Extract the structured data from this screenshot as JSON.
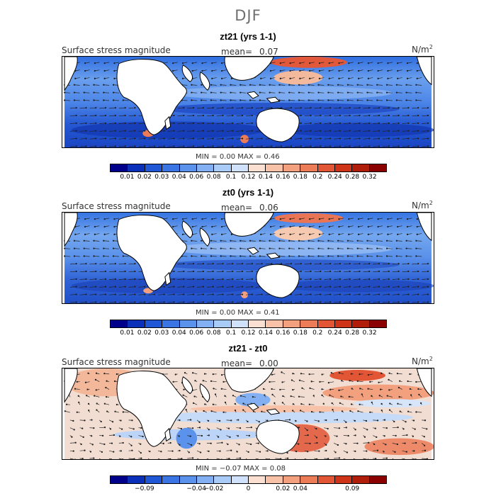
{
  "title": "DJF",
  "colors": {
    "land": "#ffffff",
    "coast": "#000000",
    "arrow": "#222222"
  },
  "panels": [
    {
      "title": "zt21 (yrs 1-1)",
      "field": "Surface stress magnitude",
      "mean_label": "mean=",
      "mean": "0.07",
      "units": "N/m",
      "units_exp": "2",
      "min_label": "MIN =",
      "min": "0.00",
      "max_label": "MAX =",
      "max": "0.46",
      "colorbar": {
        "colors": [
          "#00008b",
          "#0a2fb8",
          "#1f57d6",
          "#3b75e4",
          "#5b92ec",
          "#82b0f2",
          "#a9cbf7",
          "#d0e2fb",
          "#fbe0d2",
          "#f8c2a8",
          "#f3a07f",
          "#ec7b57",
          "#e25535",
          "#cf3418",
          "#b01e0b",
          "#8b0000"
        ],
        "ticks": [
          "0.01",
          "0.02",
          "0.03",
          "0.04",
          "0.06",
          "0.08",
          "0.1",
          "0.12",
          "0.14",
          "0.16",
          "0.18",
          "0.2",
          "0.24",
          "0.28",
          "0.32"
        ]
      }
    },
    {
      "title": "zt0 (yrs 1-1)",
      "field": "Surface stress magnitude",
      "mean_label": "mean=",
      "mean": "0.06",
      "units": "N/m",
      "units_exp": "2",
      "min_label": "MIN =",
      "min": "0.00",
      "max_label": "MAX =",
      "max": "0.41",
      "colorbar": {
        "colors": [
          "#00008b",
          "#0a2fb8",
          "#1f57d6",
          "#3b75e4",
          "#5b92ec",
          "#82b0f2",
          "#a9cbf7",
          "#d0e2fb",
          "#fbe0d2",
          "#f8c2a8",
          "#f3a07f",
          "#ec7b57",
          "#e25535",
          "#cf3418",
          "#b01e0b",
          "#8b0000"
        ],
        "ticks": [
          "0.01",
          "0.02",
          "0.03",
          "0.04",
          "0.06",
          "0.08",
          "0.1",
          "0.12",
          "0.14",
          "0.16",
          "0.18",
          "0.2",
          "0.24",
          "0.28",
          "0.32"
        ]
      }
    },
    {
      "title": "zt21 - zt0",
      "field": "Surface stress magnitude",
      "mean_label": "mean=",
      "mean": "0.00",
      "units": "N/m",
      "units_exp": "2",
      "min_label": "MIN =",
      "min": "−0.07",
      "max_label": "MAX =",
      "max": "0.08",
      "colorbar": {
        "colors": [
          "#00008b",
          "#0a2fb8",
          "#1f57d6",
          "#3b75e4",
          "#5b92ec",
          "#82b0f2",
          "#a9cbf7",
          "#d0e2fb",
          "#fbe0d2",
          "#f8c2a8",
          "#f3a07f",
          "#ec7b57",
          "#e25535",
          "#cf3418",
          "#b01e0b",
          "#8b0000"
        ],
        "ticks": [
          "−0.09",
          "−0.04",
          "−0.02",
          "0",
          "0.02",
          "0.04",
          "0.09"
        ]
      }
    }
  ]
}
